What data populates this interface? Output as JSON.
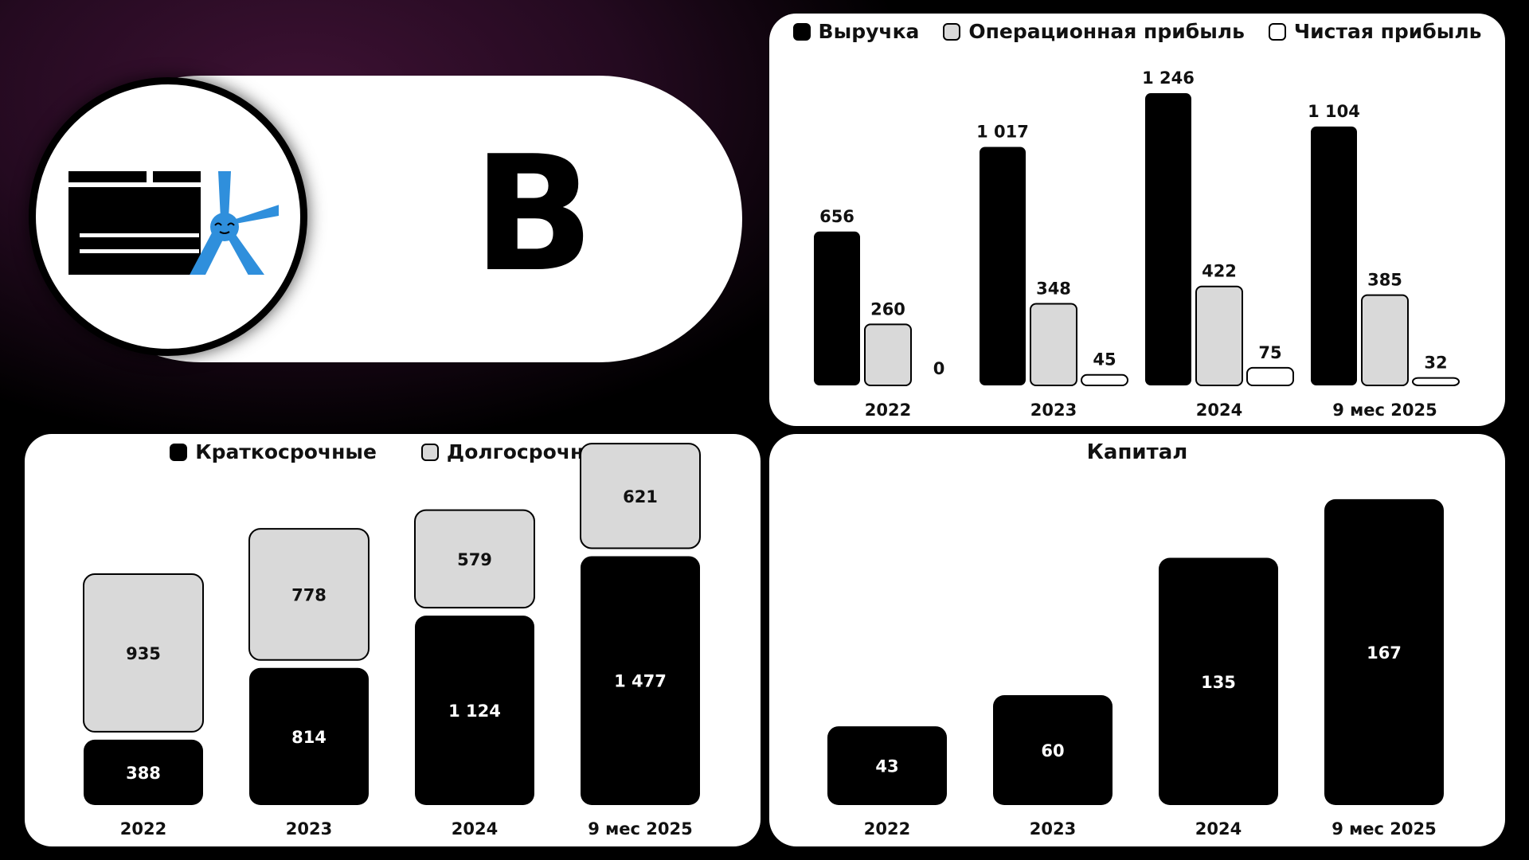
{
  "brand": {
    "letter": "В",
    "logo_icon": "company-logo-icon",
    "accent_color": "#2f8fdc"
  },
  "chart_data": [
    {
      "id": "income",
      "type": "bar",
      "categories": [
        "2022",
        "2023",
        "2024",
        "9 мес 2025"
      ],
      "series": [
        {
          "name": "Выручка",
          "values": [
            656,
            1017,
            1246,
            1104
          ],
          "labels": [
            "656",
            "1 017",
            "1 246",
            "1 104"
          ],
          "color": "#000000"
        },
        {
          "name": "Операционная прибыль",
          "values": [
            260,
            348,
            422,
            385
          ],
          "labels": [
            "260",
            "348",
            "422",
            "385"
          ],
          "color": "#d9d9d9"
        },
        {
          "name": "Чистая прибыль",
          "values": [
            0,
            45,
            75,
            32
          ],
          "labels": [
            "0",
            "45",
            "75",
            "32"
          ],
          "color": "#ffffff"
        }
      ],
      "legend": "top",
      "grid": false
    },
    {
      "id": "debt",
      "type": "bar",
      "stacked": true,
      "categories": [
        "2022",
        "2023",
        "2024",
        "9 мес 2025"
      ],
      "series": [
        {
          "name": "Краткосрочные",
          "values": [
            388,
            814,
            1124,
            1477
          ],
          "labels": [
            "388",
            "814",
            "1 124",
            "1 477"
          ],
          "color": "#000000"
        },
        {
          "name": "Долгосрочные",
          "values": [
            935,
            778,
            579,
            621
          ],
          "labels": [
            "935",
            "778",
            "579",
            "621"
          ],
          "color": "#d9d9d9"
        }
      ],
      "legend": "top",
      "grid": false
    },
    {
      "id": "capital",
      "type": "bar",
      "title": "Капитал",
      "categories": [
        "2022",
        "2023",
        "2024",
        "9 мес 2025"
      ],
      "series": [
        {
          "values": [
            43,
            60,
            135,
            167
          ],
          "labels": [
            "43",
            "60",
            "135",
            "167"
          ],
          "color": "#000000"
        }
      ],
      "grid": false
    }
  ]
}
